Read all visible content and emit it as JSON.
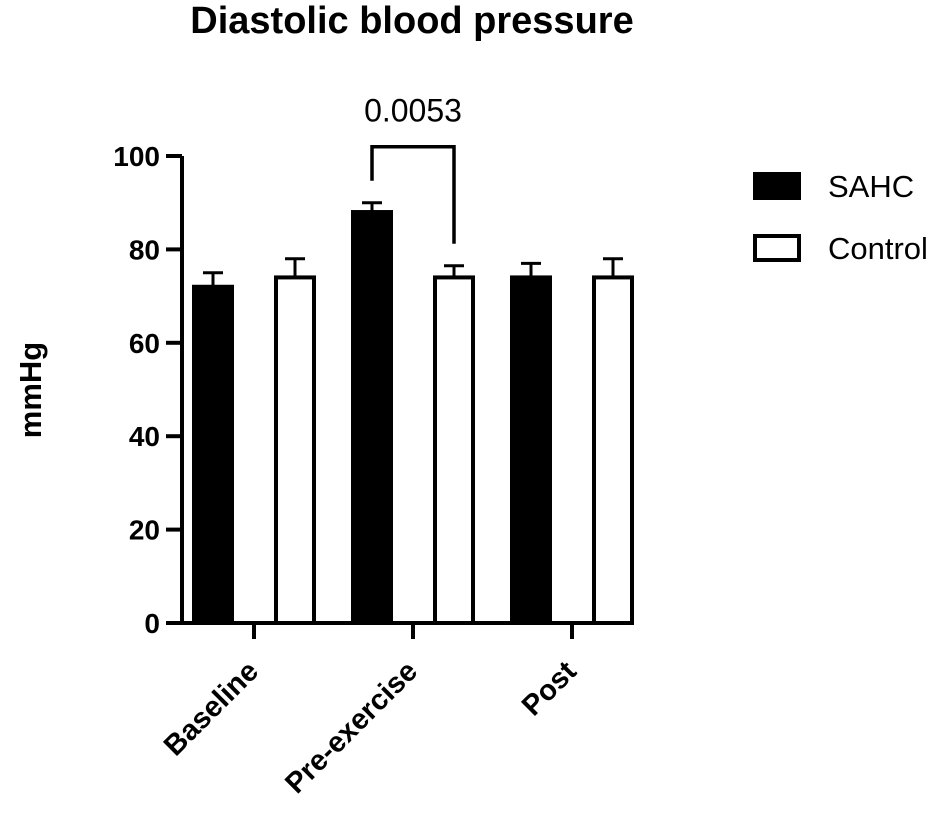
{
  "chart_data": {
    "type": "bar",
    "title": "Diastolic blood pressure",
    "ylabel": "mmHg",
    "xlabel": "",
    "ylim": [
      0,
      100
    ],
    "yticks": [
      0,
      20,
      40,
      60,
      80,
      100
    ],
    "categories": [
      "Baseline",
      "Pre-exercise",
      "Post"
    ],
    "series": [
      {
        "name": "SAHC",
        "fill": "#000000",
        "values": [
          72,
          88,
          74
        ],
        "errors": [
          3,
          2,
          3
        ]
      },
      {
        "name": "Control",
        "fill": "#ffffff",
        "values": [
          74,
          74,
          74
        ],
        "errors": [
          4,
          2.5,
          4
        ]
      }
    ],
    "legend_position": "top-right",
    "grid": false,
    "annotations": [
      {
        "text": "0.0053",
        "category": "Pre-exercise",
        "between": [
          "SAHC",
          "Control"
        ]
      }
    ]
  }
}
